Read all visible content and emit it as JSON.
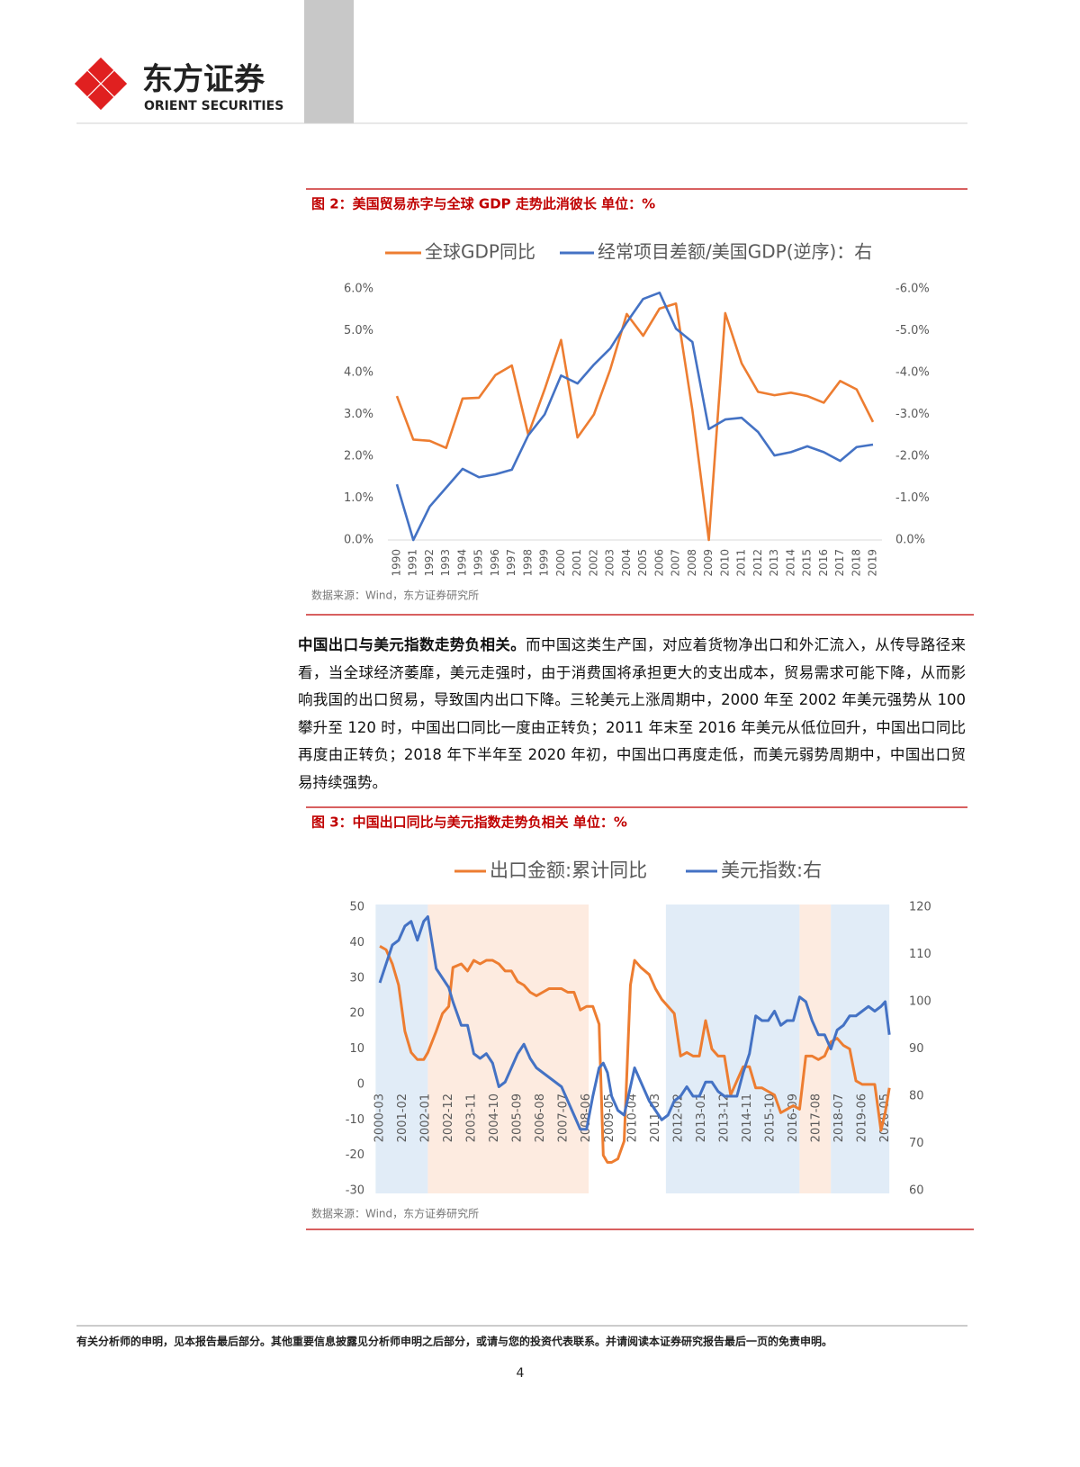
{
  "header": {
    "brand": "东方证券",
    "brand_en": "ORIENT SECURITIES"
  },
  "chart_data": [
    {
      "type": "line",
      "title": "图 2：美国贸易赤字与全球 GDP 走势此消彼长  单位：%",
      "source": "数据来源：Wind，东方证券研究所",
      "categories": [
        "1990",
        "1991",
        "1992",
        "1993",
        "1994",
        "1995",
        "1996",
        "1997",
        "1998",
        "1999",
        "2000",
        "2001",
        "2002",
        "2003",
        "2004",
        "2005",
        "2006",
        "2007",
        "2008",
        "2009",
        "2010",
        "2011",
        "2012",
        "2013",
        "2014",
        "2015",
        "2016",
        "2017",
        "2018",
        "2019"
      ],
      "series": [
        {
          "name": "全球GDP同比",
          "color": "#ed7d31",
          "values": [
            3.44,
            2.4,
            2.37,
            2.2,
            3.38,
            3.4,
            3.94,
            4.17,
            2.52,
            3.6,
            4.78,
            2.45,
            3.0,
            4.08,
            5.4,
            4.88,
            5.53,
            5.65,
            3.1,
            0,
            5.42,
            4.22,
            3.54,
            3.46,
            3.52,
            3.44,
            3.28,
            3.8,
            3.6,
            2.82
          ]
        },
        {
          "name": "经常项目差额/美国GDP(逆序)：右",
          "color": "#4472c4",
          "axis": "y2",
          "values": [
            -1.33,
            0,
            -0.8,
            -1.25,
            -1.7,
            -1.5,
            -1.57,
            -1.68,
            -2.5,
            -3.0,
            -3.93,
            -3.74,
            -4.19,
            -4.58,
            -5.2,
            -5.76,
            -5.91,
            -5.05,
            -4.73,
            -2.65,
            -2.88,
            -2.92,
            -2.58,
            -2.02,
            -2.1,
            -2.24,
            -2.1,
            -1.89,
            -2.22,
            -2.28
          ]
        }
      ],
      "ylim": [
        0,
        6
      ],
      "yticks": [
        {
          "value": 6,
          "label": "6.0%"
        },
        {
          "value": 5,
          "label": "5.0%"
        },
        {
          "value": 4,
          "label": "4.0%"
        },
        {
          "value": 3,
          "label": "3.0%"
        },
        {
          "value": 2,
          "label": "2.0%"
        },
        {
          "value": 1,
          "label": "1.0%"
        },
        {
          "value": 0,
          "label": "0.0%"
        }
      ],
      "y2lim": [
        0,
        -6
      ],
      "y2ticks": [
        {
          "value": -6,
          "label": "-6.0%"
        },
        {
          "value": -5,
          "label": "-5.0%"
        },
        {
          "value": -4,
          "label": "-4.0%"
        },
        {
          "value": -3,
          "label": "-3.0%"
        },
        {
          "value": -2,
          "label": "-2.0%"
        },
        {
          "value": -1,
          "label": "-1.0%"
        },
        {
          "value": 0,
          "label": "0.0%"
        }
      ],
      "grid": false
    },
    {
      "type": "line",
      "title": "图 3：中国出口同比与美元指数走势负相关  单位：%",
      "source": "数据来源：Wind，东方证券研究所",
      "x": [
        "2000-03",
        "2000-06",
        "2000-09",
        "2000-12",
        "2001-03",
        "2001-06",
        "2001-09",
        "2001-12",
        "2002-02",
        "2002-06",
        "2002-09",
        "2002-12",
        "2003-02",
        "2003-06",
        "2003-09",
        "2003-12",
        "2004-03",
        "2004-06",
        "2004-09",
        "2004-12",
        "2005-03",
        "2005-06",
        "2005-09",
        "2005-12",
        "2006-03",
        "2006-06",
        "2006-09",
        "2006-12",
        "2007-03",
        "2007-06",
        "2007-09",
        "2007-12",
        "2008-03",
        "2008-06",
        "2008-09",
        "2008-12",
        "2009-02",
        "2009-04",
        "2009-06",
        "2009-09",
        "2009-12",
        "2010-03",
        "2010-05",
        "2010-08",
        "2010-12",
        "2011-03",
        "2011-06",
        "2011-09",
        "2011-12",
        "2012-03",
        "2012-06",
        "2012-09",
        "2012-12",
        "2013-03",
        "2013-06",
        "2013-09",
        "2013-12",
        "2014-03",
        "2014-06",
        "2014-09",
        "2014-12",
        "2015-03",
        "2015-06",
        "2015-09",
        "2015-12",
        "2016-03",
        "2016-06",
        "2016-09",
        "2016-12",
        "2017-03",
        "2017-06",
        "2017-09",
        "2017-12",
        "2018-03",
        "2018-06",
        "2018-09",
        "2018-12",
        "2019-03",
        "2019-06",
        "2019-09",
        "2019-12",
        "2020-03",
        "2020-05",
        "2020-07"
      ],
      "series": [
        {
          "name": "出口金额:累计同比",
          "color": "#ed7d31",
          "values": [
            39,
            38,
            34,
            28,
            15,
            9,
            7,
            7,
            9,
            15,
            20,
            22,
            33,
            34,
            32,
            35,
            34,
            35,
            35,
            34,
            32,
            32,
            29,
            28,
            26,
            25,
            26,
            27,
            27,
            27,
            26,
            26,
            21,
            22,
            22,
            17,
            -20,
            -22,
            -22,
            -21,
            -16,
            28,
            35,
            33,
            31,
            27,
            24,
            22,
            20,
            8,
            9,
            8,
            8,
            18,
            10,
            8,
            8,
            -3,
            1,
            5,
            5,
            -1,
            -1,
            -2,
            -3,
            -8,
            -7,
            -6,
            -7,
            8,
            8,
            7,
            8,
            12,
            13,
            11,
            10,
            1,
            0,
            0,
            0,
            -13,
            -8,
            -1
          ]
        },
        {
          "name": "美元指数:右",
          "color": "#4472c4",
          "axis": "y2",
          "values": [
            104,
            108,
            112,
            113,
            116,
            117,
            113,
            117,
            118,
            107,
            105,
            103,
            100,
            95,
            95,
            89,
            88,
            89,
            87,
            82,
            83,
            86,
            89,
            91,
            88,
            86,
            85,
            84,
            83,
            82,
            79,
            76,
            73,
            73,
            80,
            86,
            87,
            85,
            80,
            77,
            76,
            82,
            86,
            83,
            79,
            77,
            75,
            76,
            79,
            80,
            82,
            80,
            80,
            83,
            83,
            81,
            80,
            80,
            80,
            85,
            89,
            97,
            96,
            96,
            98,
            95,
            96,
            96,
            101,
            100,
            96,
            93,
            93,
            90,
            94,
            95,
            97,
            97,
            98,
            99,
            98,
            99,
            100,
            93
          ]
        }
      ],
      "xlim": [
        "2000-01",
        "2020-08"
      ],
      "xticks": [
        "2000-03",
        "2001-02",
        "2002-01",
        "2002-12",
        "2003-11",
        "2004-10",
        "2005-09",
        "2006-08",
        "2007-07",
        "2008-06",
        "2009-05",
        "2010-04",
        "2011-03",
        "2012-02",
        "2013-01",
        "2013-12",
        "2014-11",
        "2015-10",
        "2016-09",
        "2017-08",
        "2018-07",
        "2019-06",
        "2020-05"
      ],
      "ylim": [
        -30,
        50
      ],
      "yticks": [
        50,
        40,
        30,
        20,
        10,
        0,
        -10,
        -20,
        -30
      ],
      "y2lim": [
        60,
        120
      ],
      "y2ticks": [
        120,
        110,
        100,
        90,
        80,
        70,
        60
      ],
      "shaded_regions": [
        {
          "start": "2000-01",
          "end": "2002-02",
          "color": "#dce9f6"
        },
        {
          "start": "2002-02",
          "end": "2008-07",
          "color": "#fde7da"
        },
        {
          "start": "2011-08",
          "end": "2016-12",
          "color": "#dce9f6"
        },
        {
          "start": "2016-12",
          "end": "2018-03",
          "color": "#fde7da"
        },
        {
          "start": "2018-03",
          "end": "2020-07",
          "color": "#dce9f6"
        }
      ],
      "grid": false
    }
  ],
  "paragraph": {
    "lead": "中国出口与美元指数走势负相关。",
    "body": "而中国这类生产国，对应着货物净出口和外汇流入，从传导路径来看，当全球经济萎靡，美元走强时，由于消费国将承担更大的支出成本，贸易需求可能下降，从而影响我国的出口贸易，导致国内出口下降。三轮美元上涨周期中，2000 年至 2002 年美元强势从 100 攀升至 120 时，中国出口同比一度由正转负；2011 年末至 2016 年美元从低位回升，中国出口同比再度由正转负；2018 年下半年至 2020 年初，中国出口再度走低，而美元弱势周期中，中国出口贸易持续强势。"
  },
  "footer": {
    "disclaimer": "有关分析师的申明，见本报告最后部分。其他重要信息披露见分析师申明之后部分，或请与您的投资代表联系。并请阅读本证券研究报告最后一页的免责申明。",
    "page": 4
  }
}
